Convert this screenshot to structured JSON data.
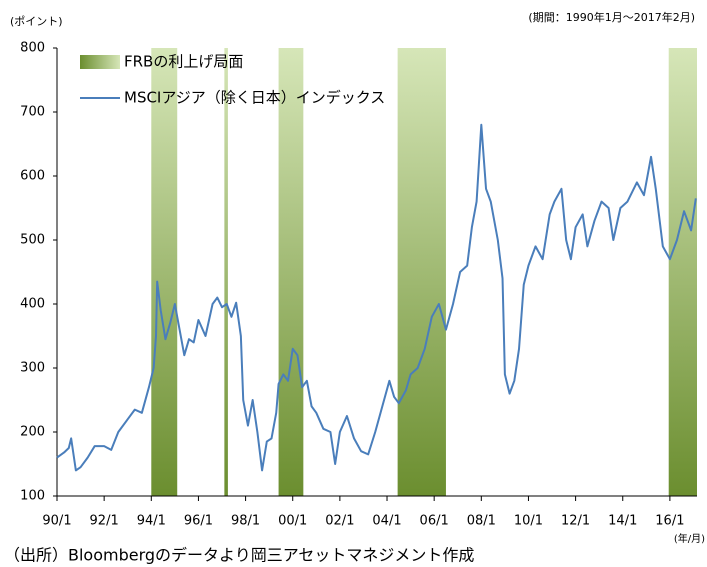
{
  "chart_data": {
    "type": "line",
    "y_unit_label": "(ポイント)",
    "period_note": "(期間：1990年1月～2017年2月)",
    "x_unit_label": "(年/月)",
    "source": "（出所）Bloombergのデータより岡三アセットマネジメント作成",
    "xlim": [
      1990,
      2017.15
    ],
    "xticks": [
      {
        "value": 1990,
        "label": "90/1"
      },
      {
        "value": 1992,
        "label": "92/1"
      },
      {
        "value": 1994,
        "label": "94/1"
      },
      {
        "value": 1996,
        "label": "96/1"
      },
      {
        "value": 1998,
        "label": "98/1"
      },
      {
        "value": 2000,
        "label": "00/1"
      },
      {
        "value": 2002,
        "label": "02/1"
      },
      {
        "value": 2004,
        "label": "04/1"
      },
      {
        "value": 2006,
        "label": "06/1"
      },
      {
        "value": 2008,
        "label": "08/1"
      },
      {
        "value": 2010,
        "label": "10/1"
      },
      {
        "value": 2012,
        "label": "12/1"
      },
      {
        "value": 2014,
        "label": "14/1"
      },
      {
        "value": 2016,
        "label": "16/1"
      }
    ],
    "ylim": [
      100,
      800
    ],
    "yticks": [
      100,
      200,
      300,
      400,
      500,
      600,
      700,
      800
    ],
    "grid": false,
    "legend": "top-left",
    "bands": {
      "name": "FRBの利上げ局面",
      "colors": [
        "#6b8e2f",
        "#d6e6b8"
      ],
      "ranges": [
        [
          1994.0,
          1995.1
        ],
        [
          1997.1,
          1997.25
        ],
        [
          1999.4,
          2000.45
        ],
        [
          2004.45,
          2006.5
        ],
        [
          2015.95,
          2017.15
        ]
      ]
    },
    "x": [
      1990.0,
      1990.3,
      1990.5,
      1990.6,
      1990.8,
      1991.0,
      1991.3,
      1991.6,
      1992.0,
      1992.3,
      1992.6,
      1993.0,
      1993.3,
      1993.6,
      1993.9,
      1994.1,
      1994.2,
      1994.25,
      1994.4,
      1994.6,
      1994.8,
      1995.0,
      1995.2,
      1995.4,
      1995.6,
      1995.8,
      1996.0,
      1996.3,
      1996.6,
      1996.8,
      1997.0,
      1997.2,
      1997.4,
      1997.6,
      1997.8,
      1997.9,
      1998.1,
      1998.3,
      1998.5,
      1998.7,
      1998.9,
      1999.1,
      1999.3,
      1999.4,
      1999.6,
      1999.8,
      2000.0,
      2000.2,
      2000.4,
      2000.6,
      2000.8,
      2001.0,
      2001.3,
      2001.6,
      2001.8,
      2002.0,
      2002.3,
      2002.6,
      2002.9,
      2003.2,
      2003.5,
      2003.8,
      2004.1,
      2004.3,
      2004.5,
      2004.8,
      2005.0,
      2005.3,
      2005.6,
      2005.9,
      2006.2,
      2006.5,
      2006.8,
      2007.1,
      2007.4,
      2007.6,
      2007.8,
      2008.0,
      2008.2,
      2008.4,
      2008.5,
      2008.7,
      2008.9,
      2009.0,
      2009.2,
      2009.4,
      2009.6,
      2009.8,
      2010.0,
      2010.3,
      2010.6,
      2010.9,
      2011.1,
      2011.4,
      2011.6,
      2011.8,
      2012.0,
      2012.3,
      2012.5,
      2012.8,
      2013.1,
      2013.4,
      2013.6,
      2013.9,
      2014.2,
      2014.6,
      2014.9,
      2015.2,
      2015.4,
      2015.7,
      2016.0,
      2016.3,
      2016.6,
      2016.9,
      2017.1
    ],
    "series": [
      {
        "name": "MSCIアジア（除く日本）インデックス",
        "color": "#4a7ebb",
        "values": [
          160,
          168,
          175,
          190,
          140,
          145,
          160,
          178,
          178,
          172,
          200,
          220,
          235,
          230,
          270,
          300,
          350,
          435,
          390,
          345,
          370,
          400,
          360,
          320,
          345,
          340,
          375,
          350,
          400,
          410,
          395,
          400,
          380,
          402,
          350,
          250,
          210,
          250,
          200,
          140,
          185,
          190,
          230,
          275,
          290,
          280,
          330,
          320,
          270,
          280,
          240,
          230,
          205,
          200,
          150,
          200,
          225,
          190,
          170,
          165,
          200,
          240,
          280,
          255,
          245,
          265,
          290,
          300,
          330,
          380,
          400,
          360,
          400,
          450,
          460,
          520,
          560,
          680,
          580,
          560,
          540,
          500,
          440,
          290,
          260,
          280,
          330,
          430,
          460,
          490,
          470,
          540,
          560,
          580,
          500,
          470,
          520,
          540,
          490,
          530,
          560,
          550,
          500,
          550,
          560,
          590,
          570,
          630,
          580,
          490,
          470,
          500,
          545,
          515,
          565
        ]
      }
    ]
  }
}
